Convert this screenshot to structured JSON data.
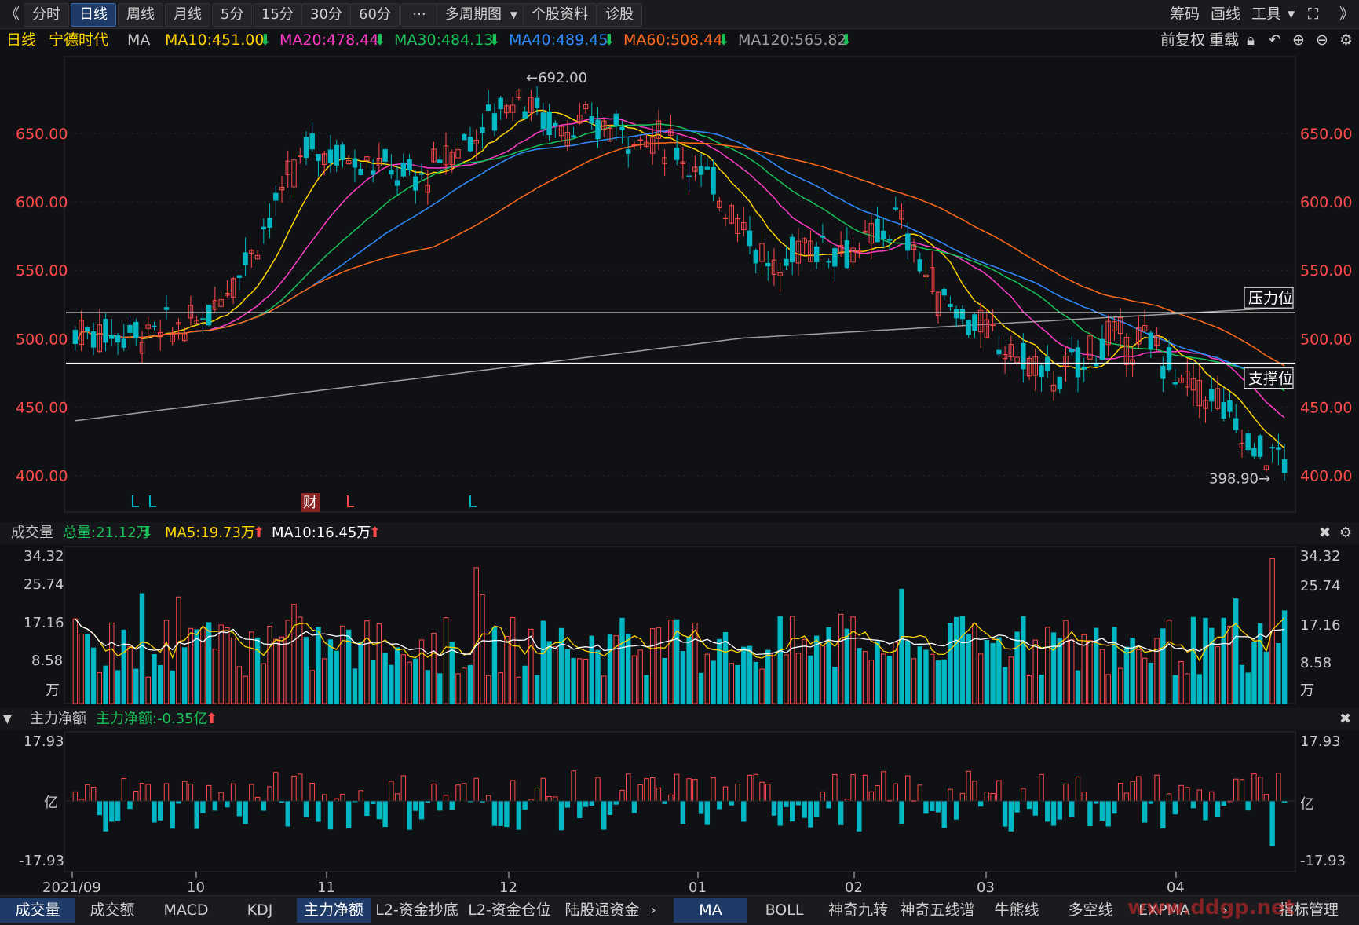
{
  "toolbar": {
    "back_icon": "《",
    "tabs": [
      "分时",
      "日线",
      "周线",
      "月线",
      "5分",
      "15分",
      "30分",
      "60分"
    ],
    "more_label": "···",
    "multi_period": "多周期图",
    "stock_info": "个股资料",
    "diagnose": "诊股",
    "chips": "筹码",
    "draw": "画线",
    "tools": "工具",
    "expand_icon": "⛶",
    "forward_icon": "》"
  },
  "info": {
    "period": "日线",
    "stock_name": "宁德时代",
    "indicator": "MA",
    "ma10": "MA10:451.00",
    "ma20": "MA20:478.44",
    "ma30": "MA30:484.13",
    "ma40": "MA40:489.45",
    "ma60": "MA60:508.44",
    "ma120": "MA120:565.82",
    "adjust": "前复权",
    "weight": "重载"
  },
  "colors": {
    "up": "#ff4b4b",
    "down": "#00b7c3",
    "ma10": "#ffd400",
    "ma20": "#ff3cc8",
    "ma30": "#19c35a",
    "ma40": "#2f8cff",
    "ma60": "#ff6a1a",
    "ma120": "#a0a0a0",
    "vol_ma5": "#ffd400",
    "vol_ma10": "#ffffff"
  },
  "main_chart": {
    "y_ticks": [
      "650.00",
      "600.00",
      "550.00",
      "500.00",
      "450.00",
      "400.00"
    ],
    "high_label": "←692.00",
    "low_label": "398.90→",
    "resistance_label": "压力位",
    "support_label": "支撑位",
    "signal_marks": [
      "L",
      "L",
      "财",
      "L",
      "L"
    ]
  },
  "volume": {
    "title": "成交量",
    "total": "总量:21.12万",
    "ma5": "MA5:19.73万",
    "ma10": "MA10:16.45万",
    "y_ticks": [
      "34.32",
      "25.74",
      "17.16",
      "8.58",
      "万"
    ]
  },
  "flow": {
    "title": "主力净额",
    "value": "主力净额:-0.35亿",
    "y_ticks": [
      "17.93",
      "亿",
      "-17.93"
    ]
  },
  "x_axis": [
    "2021/09",
    "10",
    "11",
    "12",
    "01",
    "02",
    "03",
    "04"
  ],
  "bottom_tabs_left": [
    "成交量",
    "成交额",
    "MACD",
    "KDJ",
    "主力净额",
    "L2-资金抄底",
    "L2-资金仓位",
    "陆股通资金"
  ],
  "bottom_tabs_right": [
    "MA",
    "BOLL",
    "神奇九转",
    "神奇五线谱",
    "牛熊线",
    "多空线",
    "EXPMA",
    "指标管理"
  ],
  "watermark": "www.ddgp.net",
  "chart_data": {
    "type": "candlestick",
    "ylim": [
      380,
      710
    ],
    "levels": {
      "resistance": 519,
      "support": 482
    },
    "ma_latest": {
      "MA10": 451.0,
      "MA20": 478.44,
      "MA30": 484.13,
      "MA40": 489.45,
      "MA60": 508.44,
      "MA120": 565.82
    },
    "extremes": {
      "high": 692.0,
      "low": 398.9
    },
    "volume_latest": {
      "total_wan": 21.12,
      "ma5_wan": 19.73,
      "ma10_wan": 16.45
    },
    "net_flow_latest_yi": -0.35,
    "volume_ylim": [
      0,
      34.32
    ],
    "flow_ylim": [
      -17.93,
      17.93
    ]
  }
}
